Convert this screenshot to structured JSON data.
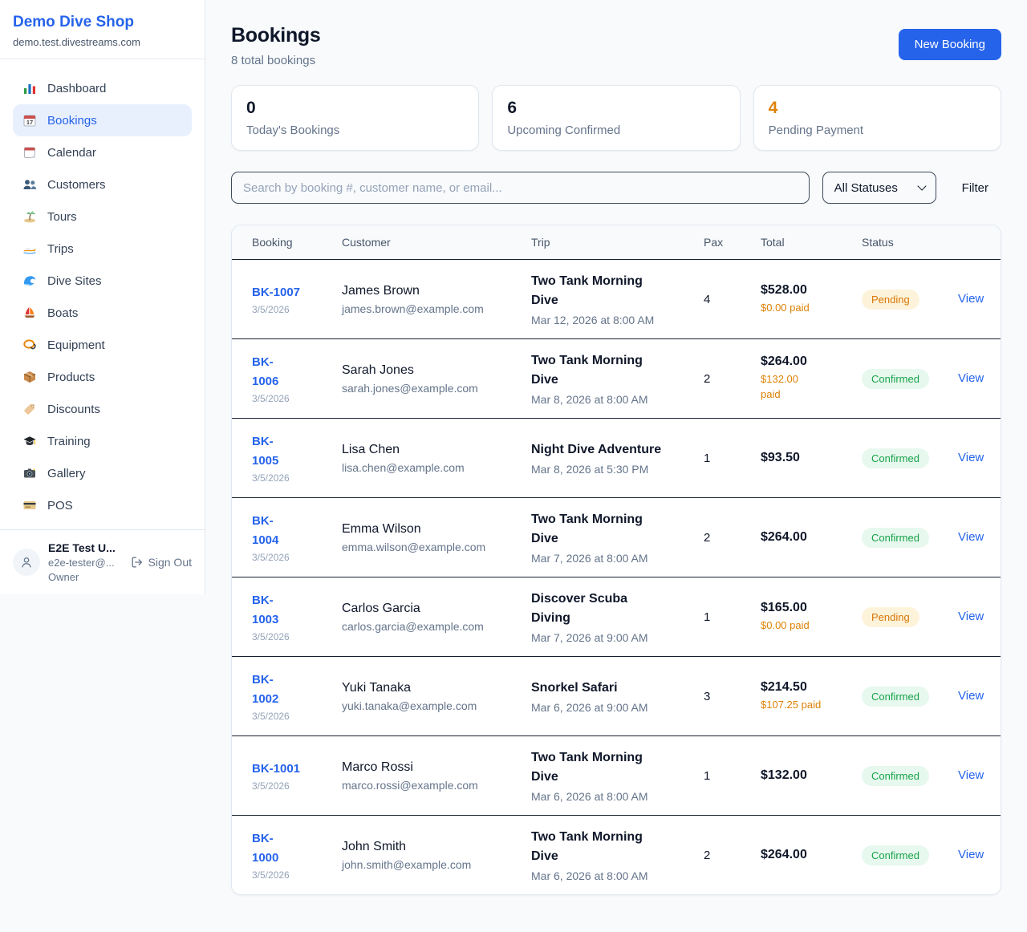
{
  "sidebar": {
    "brand": {
      "name": "Demo Dive Shop",
      "domain": "demo.test.divestreams.com"
    },
    "nav": [
      {
        "label": "Dashboard",
        "icon": "bar-chart-icon",
        "active": false
      },
      {
        "label": "Bookings",
        "icon": "bookings-calendar-icon",
        "active": true
      },
      {
        "label": "Calendar",
        "icon": "calendar-icon",
        "active": false
      },
      {
        "label": "Customers",
        "icon": "users-icon",
        "active": false
      },
      {
        "label": "Tours",
        "icon": "island-icon",
        "active": false
      },
      {
        "label": "Trips",
        "icon": "speedboat-icon",
        "active": false
      },
      {
        "label": "Dive Sites",
        "icon": "wave-icon",
        "active": false
      },
      {
        "label": "Boats",
        "icon": "sailboat-icon",
        "active": false
      },
      {
        "label": "Equipment",
        "icon": "diving-mask-icon",
        "active": false
      },
      {
        "label": "Products",
        "icon": "package-icon",
        "active": false
      },
      {
        "label": "Discounts",
        "icon": "tag-icon",
        "active": false
      },
      {
        "label": "Training",
        "icon": "graduation-cap-icon",
        "active": false
      },
      {
        "label": "Gallery",
        "icon": "camera-icon",
        "active": false
      },
      {
        "label": "POS",
        "icon": "credit-card-icon",
        "active": false
      }
    ],
    "user": {
      "name": "E2E Test U...",
      "email": "e2e-tester@...",
      "role": "Owner",
      "sign_out_label": "Sign Out"
    }
  },
  "header": {
    "title": "Bookings",
    "subtitle": "8 total bookings",
    "new_booking_label": "New Booking"
  },
  "stats": [
    {
      "value": "0",
      "label": "Today's Bookings",
      "color": "#0f172a"
    },
    {
      "value": "6",
      "label": "Upcoming Confirmed",
      "color": "#0f172a"
    },
    {
      "value": "4",
      "label": "Pending Payment",
      "color": "#dd8206"
    }
  ],
  "filters": {
    "search_placeholder": "Search by booking #, customer name, or email...",
    "status_value": "All Statuses",
    "filter_label": "Filter"
  },
  "table": {
    "columns": [
      "Booking",
      "Customer",
      "Trip",
      "Pax",
      "Total",
      "Status"
    ],
    "rows": [
      {
        "id": "BK-1007",
        "id_display": "BK-1007",
        "date": "3/5/2026",
        "customer": "James Brown",
        "email": "james.brown@example.com",
        "trip": "Two Tank Morning Dive",
        "trip_display": "Two Tank Morning\nDive",
        "trip_time": "Mar 12, 2026 at 8:00 AM",
        "pax": "4",
        "total": "$528.00",
        "paid": "$0.00 paid",
        "paid_display": "$0.00 paid",
        "status": "Pending",
        "action": "View"
      },
      {
        "id": "BK-1006",
        "id_display": "BK-\n1006",
        "date": "3/5/2026",
        "customer": "Sarah Jones",
        "email": "sarah.jones@example.com",
        "trip": "Two Tank Morning Dive",
        "trip_display": "Two Tank Morning\nDive",
        "trip_time": "Mar 8, 2026 at 8:00 AM",
        "pax": "2",
        "total": "$264.00",
        "paid": "$132.00 paid",
        "paid_display": "$132.00\npaid",
        "status": "Confirmed",
        "action": "View"
      },
      {
        "id": "BK-1005",
        "id_display": "BK-\n1005",
        "date": "3/5/2026",
        "customer": "Lisa Chen",
        "email": "lisa.chen@example.com",
        "trip": "Night Dive Adventure",
        "trip_display": "Night Dive Adventure",
        "trip_time": "Mar 8, 2026 at 5:30 PM",
        "pax": "1",
        "total": "$93.50",
        "paid": null,
        "paid_display": null,
        "status": "Confirmed",
        "action": "View"
      },
      {
        "id": "BK-1004",
        "id_display": "BK-\n1004",
        "date": "3/5/2026",
        "customer": "Emma Wilson",
        "email": "emma.wilson@example.com",
        "trip": "Two Tank Morning Dive",
        "trip_display": "Two Tank Morning\nDive",
        "trip_time": "Mar 7, 2026 at 8:00 AM",
        "pax": "2",
        "total": "$264.00",
        "paid": null,
        "paid_display": null,
        "status": "Confirmed",
        "action": "View"
      },
      {
        "id": "BK-1003",
        "id_display": "BK-\n1003",
        "date": "3/5/2026",
        "customer": "Carlos Garcia",
        "email": "carlos.garcia@example.com",
        "trip": "Discover Scuba Diving",
        "trip_display": "Discover Scuba\nDiving",
        "trip_time": "Mar 7, 2026 at 9:00 AM",
        "pax": "1",
        "total": "$165.00",
        "paid": "$0.00 paid",
        "paid_display": "$0.00 paid",
        "status": "Pending",
        "action": "View"
      },
      {
        "id": "BK-1002",
        "id_display": "BK-\n1002",
        "date": "3/5/2026",
        "customer": "Yuki Tanaka",
        "email": "yuki.tanaka@example.com",
        "trip": "Snorkel Safari",
        "trip_display": "Snorkel Safari",
        "trip_time": "Mar 6, 2026 at 9:00 AM",
        "pax": "3",
        "total": "$214.50",
        "paid": "$107.25 paid",
        "paid_display": "$107.25 paid",
        "status": "Confirmed",
        "action": "View"
      },
      {
        "id": "BK-1001",
        "id_display": "BK-1001",
        "date": "3/5/2026",
        "customer": "Marco Rossi",
        "email": "marco.rossi@example.com",
        "trip": "Two Tank Morning Dive",
        "trip_display": "Two Tank Morning\nDive",
        "trip_time": "Mar 6, 2026 at 8:00 AM",
        "pax": "1",
        "total": "$132.00",
        "paid": null,
        "paid_display": null,
        "status": "Confirmed",
        "action": "View"
      },
      {
        "id": "BK-1000",
        "id_display": "BK-\n1000",
        "date": "3/5/2026",
        "customer": "John Smith",
        "email": "john.smith@example.com",
        "trip": "Two Tank Morning Dive",
        "trip_display": "Two Tank Morning\nDive",
        "trip_time": "Mar 6, 2026 at 8:00 AM",
        "pax": "2",
        "total": "$264.00",
        "paid": null,
        "paid_display": null,
        "status": "Confirmed",
        "action": "View"
      }
    ]
  },
  "colors": {
    "brand_blue": "#2563eb",
    "pending_orange": "#d97706",
    "pending_badge_bg": "#fdf3da",
    "confirmed_green": "#17a34a",
    "confirmed_badge_bg": "#e7f8ee",
    "page_background": "#f8fafc"
  }
}
